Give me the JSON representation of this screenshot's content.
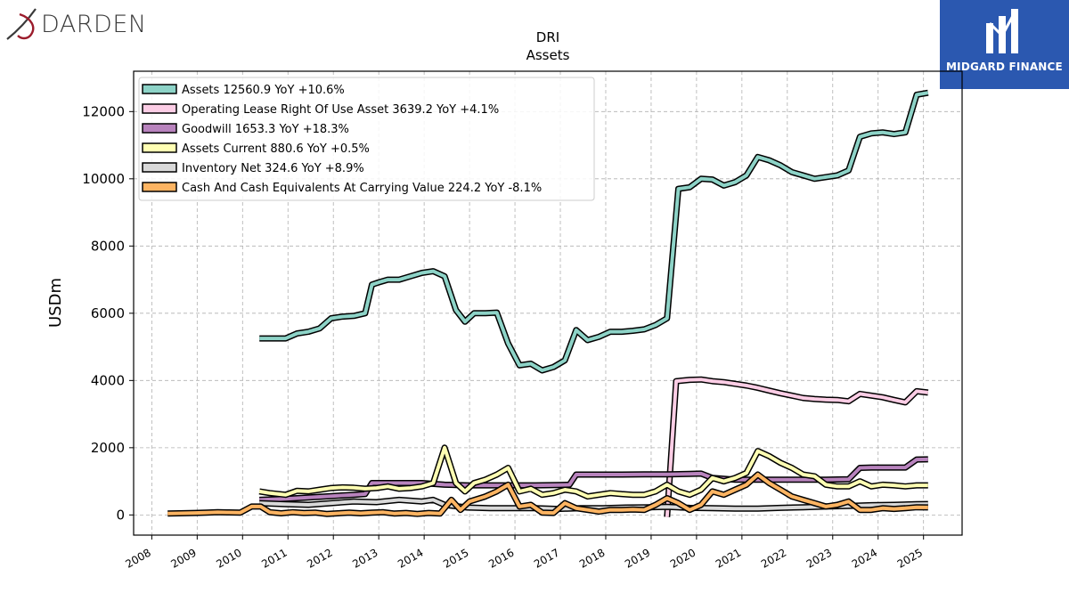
{
  "logos": {
    "left": {
      "text": "DARDEN",
      "icon": "darden-swirl-icon"
    },
    "right": {
      "text": "MIDGARD FINANCE",
      "icon": "midgard-m-icon",
      "bg_color": "#2b58b0"
    }
  },
  "chart_data": {
    "type": "line",
    "title": "DRI",
    "subtitle": "Assets",
    "xlabel": "",
    "ylabel": "USDm",
    "xlim": [
      2007.6,
      2025.85
    ],
    "ylim": [
      -600,
      13200
    ],
    "yticks": [
      0,
      2000,
      4000,
      6000,
      8000,
      10000,
      12000
    ],
    "xticks": [
      "2008",
      "2009",
      "2010",
      "2011",
      "2012",
      "2013",
      "2014",
      "2015",
      "2016",
      "2017",
      "2018",
      "2019",
      "2020",
      "2021",
      "2022",
      "2023",
      "2024",
      "2025"
    ],
    "grid": true,
    "legend_position": "top-left",
    "series": [
      {
        "name": "Assets",
        "legend_label": "Assets  12560.9 YoY +10.6%",
        "color": "#8dd3c7",
        "points": [
          [
            2010.37,
            5250
          ],
          [
            2010.6,
            5250
          ],
          [
            2010.95,
            5250
          ],
          [
            2011.2,
            5400
          ],
          [
            2011.45,
            5450
          ],
          [
            2011.7,
            5550
          ],
          [
            2011.95,
            5850
          ],
          [
            2012.2,
            5900
          ],
          [
            2012.45,
            5920
          ],
          [
            2012.7,
            6000
          ],
          [
            2012.85,
            6850
          ],
          [
            2013.0,
            6920
          ],
          [
            2013.2,
            7000
          ],
          [
            2013.45,
            7000
          ],
          [
            2013.7,
            7100
          ],
          [
            2013.95,
            7200
          ],
          [
            2014.2,
            7250
          ],
          [
            2014.45,
            7100
          ],
          [
            2014.7,
            6100
          ],
          [
            2014.9,
            5750
          ],
          [
            2015.1,
            6000
          ],
          [
            2015.35,
            6000
          ],
          [
            2015.6,
            6020
          ],
          [
            2015.85,
            5100
          ],
          [
            2016.1,
            4450
          ],
          [
            2016.35,
            4500
          ],
          [
            2016.6,
            4300
          ],
          [
            2016.85,
            4400
          ],
          [
            2017.1,
            4600
          ],
          [
            2017.35,
            5500
          ],
          [
            2017.6,
            5200
          ],
          [
            2017.85,
            5300
          ],
          [
            2018.1,
            5450
          ],
          [
            2018.35,
            5450
          ],
          [
            2018.6,
            5480
          ],
          [
            2018.85,
            5520
          ],
          [
            2019.1,
            5650
          ],
          [
            2019.35,
            5850
          ],
          [
            2019.6,
            9700
          ],
          [
            2019.85,
            9750
          ],
          [
            2020.1,
            10000
          ],
          [
            2020.35,
            9980
          ],
          [
            2020.6,
            9800
          ],
          [
            2020.85,
            9900
          ],
          [
            2021.1,
            10100
          ],
          [
            2021.35,
            10650
          ],
          [
            2021.6,
            10550
          ],
          [
            2021.85,
            10400
          ],
          [
            2022.1,
            10200
          ],
          [
            2022.35,
            10100
          ],
          [
            2022.6,
            10000
          ],
          [
            2022.85,
            10050
          ],
          [
            2023.1,
            10100
          ],
          [
            2023.35,
            10250
          ],
          [
            2023.6,
            11250
          ],
          [
            2023.85,
            11350
          ],
          [
            2024.1,
            11380
          ],
          [
            2024.35,
            11330
          ],
          [
            2024.6,
            11380
          ],
          [
            2024.85,
            12500
          ],
          [
            2025.1,
            12560
          ]
        ]
      },
      {
        "name": "Operating Lease Right Of Use Asset",
        "legend_label": "Operating Lease Right Of Use Asset  3639.2 YoY +4.1%",
        "color": "#fccde5",
        "points": [
          [
            2019.35,
            -60
          ],
          [
            2019.55,
            3980
          ],
          [
            2019.85,
            4020
          ],
          [
            2020.1,
            4030
          ],
          [
            2020.35,
            3980
          ],
          [
            2020.6,
            3950
          ],
          [
            2020.85,
            3900
          ],
          [
            2021.1,
            3850
          ],
          [
            2021.35,
            3780
          ],
          [
            2021.6,
            3700
          ],
          [
            2021.85,
            3620
          ],
          [
            2022.1,
            3550
          ],
          [
            2022.35,
            3480
          ],
          [
            2022.6,
            3450
          ],
          [
            2022.85,
            3430
          ],
          [
            2023.1,
            3420
          ],
          [
            2023.35,
            3380
          ],
          [
            2023.6,
            3600
          ],
          [
            2023.85,
            3550
          ],
          [
            2024.1,
            3500
          ],
          [
            2024.35,
            3420
          ],
          [
            2024.6,
            3350
          ],
          [
            2024.85,
            3680
          ],
          [
            2025.1,
            3640
          ]
        ]
      },
      {
        "name": "Goodwill",
        "legend_label": "Goodwill  1653.3 YoY +18.3%",
        "color": "#b883bd",
        "points": [
          [
            2010.37,
            450
          ],
          [
            2010.95,
            480
          ],
          [
            2011.45,
            520
          ],
          [
            2011.95,
            560
          ],
          [
            2012.45,
            600
          ],
          [
            2012.7,
            620
          ],
          [
            2012.85,
            950
          ],
          [
            2013.45,
            950
          ],
          [
            2013.95,
            950
          ],
          [
            2014.45,
            900
          ],
          [
            2014.95,
            880
          ],
          [
            2015.45,
            880
          ],
          [
            2015.95,
            880
          ],
          [
            2016.45,
            880
          ],
          [
            2016.95,
            890
          ],
          [
            2017.2,
            900
          ],
          [
            2017.35,
            1200
          ],
          [
            2017.85,
            1200
          ],
          [
            2018.35,
            1200
          ],
          [
            2018.85,
            1210
          ],
          [
            2019.35,
            1210
          ],
          [
            2019.85,
            1220
          ],
          [
            2020.1,
            1230
          ],
          [
            2020.35,
            1100
          ],
          [
            2020.85,
            1050
          ],
          [
            2021.35,
            1050
          ],
          [
            2021.85,
            1050
          ],
          [
            2022.35,
            1050
          ],
          [
            2022.85,
            1050
          ],
          [
            2023.35,
            1060
          ],
          [
            2023.6,
            1400
          ],
          [
            2023.85,
            1410
          ],
          [
            2024.35,
            1410
          ],
          [
            2024.6,
            1410
          ],
          [
            2024.85,
            1650
          ],
          [
            2025.1,
            1653
          ]
        ]
      },
      {
        "name": "Assets Current",
        "legend_label": "Assets Current  880.6 YoY +0.5%",
        "color": "#ffffb3",
        "points": [
          [
            2010.37,
            700
          ],
          [
            2010.6,
            650
          ],
          [
            2010.95,
            600
          ],
          [
            2011.2,
            720
          ],
          [
            2011.45,
            700
          ],
          [
            2011.7,
            750
          ],
          [
            2011.95,
            800
          ],
          [
            2012.2,
            820
          ],
          [
            2012.45,
            810
          ],
          [
            2012.7,
            780
          ],
          [
            2012.95,
            800
          ],
          [
            2013.2,
            850
          ],
          [
            2013.45,
            780
          ],
          [
            2013.7,
            800
          ],
          [
            2013.95,
            850
          ],
          [
            2014.2,
            950
          ],
          [
            2014.45,
            2000
          ],
          [
            2014.7,
            950
          ],
          [
            2014.9,
            700
          ],
          [
            2015.1,
            950
          ],
          [
            2015.35,
            1050
          ],
          [
            2015.6,
            1200
          ],
          [
            2015.85,
            1400
          ],
          [
            2016.1,
            700
          ],
          [
            2016.35,
            780
          ],
          [
            2016.6,
            600
          ],
          [
            2016.85,
            650
          ],
          [
            2017.1,
            750
          ],
          [
            2017.35,
            700
          ],
          [
            2017.6,
            550
          ],
          [
            2017.85,
            600
          ],
          [
            2018.1,
            650
          ],
          [
            2018.35,
            620
          ],
          [
            2018.6,
            600
          ],
          [
            2018.85,
            600
          ],
          [
            2019.1,
            700
          ],
          [
            2019.35,
            900
          ],
          [
            2019.6,
            700
          ],
          [
            2019.85,
            600
          ],
          [
            2020.1,
            750
          ],
          [
            2020.35,
            1100
          ],
          [
            2020.6,
            1000
          ],
          [
            2020.85,
            1100
          ],
          [
            2021.1,
            1250
          ],
          [
            2021.35,
            1900
          ],
          [
            2021.6,
            1750
          ],
          [
            2021.85,
            1550
          ],
          [
            2022.1,
            1400
          ],
          [
            2022.35,
            1200
          ],
          [
            2022.6,
            1150
          ],
          [
            2022.85,
            900
          ],
          [
            2023.1,
            850
          ],
          [
            2023.35,
            850
          ],
          [
            2023.6,
            1000
          ],
          [
            2023.85,
            850
          ],
          [
            2024.1,
            900
          ],
          [
            2024.35,
            880
          ],
          [
            2024.6,
            850
          ],
          [
            2024.85,
            880
          ],
          [
            2025.1,
            880
          ]
        ]
      },
      {
        "name": "Inventory Net",
        "legend_label": "Inventory Net  324.6 YoY +8.9%",
        "color": "#d9d9d9",
        "points": [
          [
            2010.37,
            350
          ],
          [
            2010.95,
            320
          ],
          [
            2011.45,
            300
          ],
          [
            2011.95,
            350
          ],
          [
            2012.45,
            400
          ],
          [
            2012.95,
            380
          ],
          [
            2013.45,
            450
          ],
          [
            2013.95,
            400
          ],
          [
            2014.2,
            450
          ],
          [
            2014.45,
            300
          ],
          [
            2014.95,
            220
          ],
          [
            2015.45,
            200
          ],
          [
            2015.95,
            200
          ],
          [
            2016.45,
            200
          ],
          [
            2016.95,
            180
          ],
          [
            2017.45,
            200
          ],
          [
            2017.95,
            200
          ],
          [
            2018.45,
            220
          ],
          [
            2018.95,
            230
          ],
          [
            2019.35,
            240
          ],
          [
            2019.85,
            210
          ],
          [
            2020.35,
            200
          ],
          [
            2020.85,
            190
          ],
          [
            2021.35,
            190
          ],
          [
            2021.85,
            210
          ],
          [
            2022.35,
            230
          ],
          [
            2022.85,
            250
          ],
          [
            2023.35,
            270
          ],
          [
            2023.85,
            290
          ],
          [
            2024.35,
            300
          ],
          [
            2024.85,
            320
          ],
          [
            2025.1,
            325
          ]
        ]
      },
      {
        "name": "Cash And Cash Equivalents At Carrying Value",
        "legend_label": "Cash And Cash Equivalents At Carrying Value  224.2 YoY -8.1%",
        "color": "#fdb462",
        "points": [
          [
            2008.35,
            40
          ],
          [
            2008.6,
            50
          ],
          [
            2008.95,
            60
          ],
          [
            2009.2,
            70
          ],
          [
            2009.45,
            80
          ],
          [
            2009.7,
            75
          ],
          [
            2009.95,
            70
          ],
          [
            2010.2,
            250
          ],
          [
            2010.4,
            250
          ],
          [
            2010.6,
            80
          ],
          [
            2010.85,
            50
          ],
          [
            2011.1,
            80
          ],
          [
            2011.35,
            60
          ],
          [
            2011.6,
            70
          ],
          [
            2011.85,
            30
          ],
          [
            2012.1,
            50
          ],
          [
            2012.35,
            70
          ],
          [
            2012.6,
            50
          ],
          [
            2012.85,
            70
          ],
          [
            2013.1,
            80
          ],
          [
            2013.35,
            40
          ],
          [
            2013.6,
            60
          ],
          [
            2013.85,
            30
          ],
          [
            2014.1,
            60
          ],
          [
            2014.35,
            40
          ],
          [
            2014.6,
            450
          ],
          [
            2014.8,
            150
          ],
          [
            2015.0,
            400
          ],
          [
            2015.35,
            550
          ],
          [
            2015.6,
            700
          ],
          [
            2015.85,
            900
          ],
          [
            2016.1,
            250
          ],
          [
            2016.35,
            300
          ],
          [
            2016.6,
            70
          ],
          [
            2016.85,
            60
          ],
          [
            2017.1,
            350
          ],
          [
            2017.35,
            200
          ],
          [
            2017.6,
            150
          ],
          [
            2017.85,
            100
          ],
          [
            2018.1,
            150
          ],
          [
            2018.35,
            150
          ],
          [
            2018.6,
            160
          ],
          [
            2018.85,
            150
          ],
          [
            2019.1,
            300
          ],
          [
            2019.35,
            500
          ],
          [
            2019.6,
            350
          ],
          [
            2019.85,
            150
          ],
          [
            2020.1,
            300
          ],
          [
            2020.35,
            700
          ],
          [
            2020.6,
            600
          ],
          [
            2020.85,
            750
          ],
          [
            2021.1,
            900
          ],
          [
            2021.35,
            1200
          ],
          [
            2021.6,
            950
          ],
          [
            2021.85,
            750
          ],
          [
            2022.1,
            550
          ],
          [
            2022.35,
            450
          ],
          [
            2022.6,
            350
          ],
          [
            2022.85,
            250
          ],
          [
            2023.1,
            300
          ],
          [
            2023.35,
            400
          ],
          [
            2023.6,
            150
          ],
          [
            2023.85,
            150
          ],
          [
            2024.1,
            200
          ],
          [
            2024.35,
            180
          ],
          [
            2024.6,
            200
          ],
          [
            2024.85,
            230
          ],
          [
            2025.1,
            224
          ]
        ]
      }
    ]
  }
}
